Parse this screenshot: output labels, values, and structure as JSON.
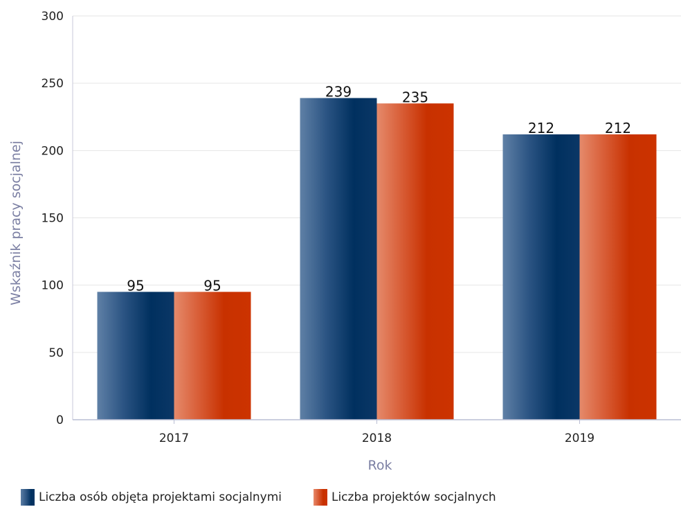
{
  "chart_data": {
    "type": "bar",
    "categories": [
      "2017",
      "2018",
      "2019"
    ],
    "series": [
      {
        "name": "Liczba osób objęta projektami socjalnymi",
        "values": [
          95,
          239,
          212
        ],
        "color": "#00305f"
      },
      {
        "name": "Liczba projektów socjalnych",
        "values": [
          95,
          235,
          212
        ],
        "color": "#cc3300"
      }
    ],
    "xlabel": "Rok",
    "ylabel": "Wskaźnik pracy socjalnej",
    "ylim": [
      0,
      300
    ],
    "yticks": [
      "0",
      "50",
      "100",
      "150",
      "200",
      "250",
      "300"
    ],
    "grid": true,
    "legend_position": "bottom-left"
  }
}
